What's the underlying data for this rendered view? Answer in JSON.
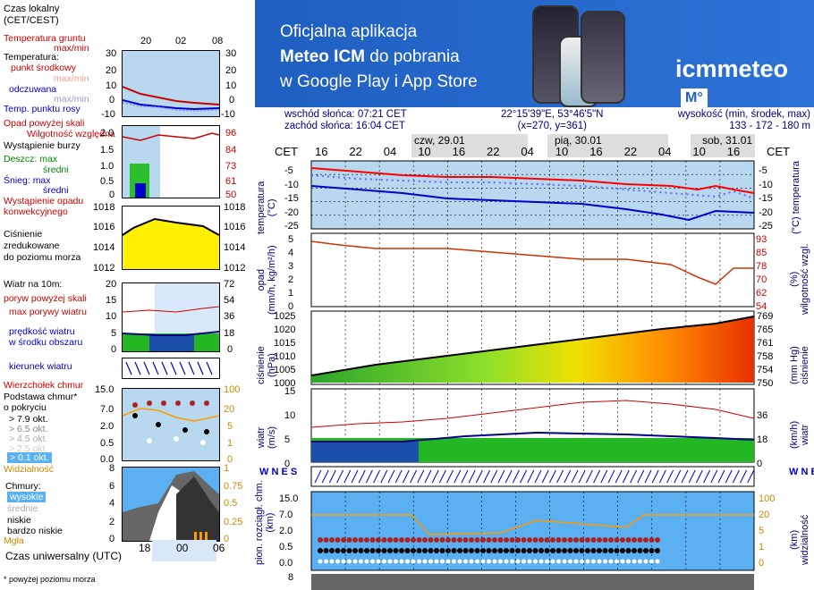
{
  "legend": {
    "time_zone": "Czas lokalny\n(CET/CEST)",
    "top_ticks": [
      "20",
      "02",
      "08"
    ],
    "soil_temp": "Temperatura gruntu",
    "soil_maxmin": "max/min",
    "temperature": "Temperatura:",
    "center_point": "punkt środkowy",
    "max_min_1": "max/min",
    "feels_like": "odczuwana",
    "max_min_2": "max/min",
    "dew_point": "Temp. punktu rosy",
    "temp_ticks": [
      "30",
      "20",
      "10",
      "0",
      "-10"
    ],
    "precip_over_scale": "Opad powyżej skali",
    "humidity": "Wilgotność względna",
    "storm": "Wystąpienie burzy",
    "rain_max": "Deszcz: max",
    "rain_avg": "średni",
    "snow_max": "Śnieg:   max",
    "snow_avg": "średni",
    "convective": "Wystąpienie opadu\nkonwekcyjnego",
    "precip_ticks": [
      "2.0",
      "1.5",
      "1.0",
      "0.5",
      "0"
    ],
    "hum_ticks": [
      "96",
      "84",
      "73",
      "61",
      "50"
    ],
    "pressure": "Ciśnienie\nzredukowane\ndo poziomu morza",
    "press_ticks": [
      "1018",
      "1016",
      "1014",
      "1012"
    ],
    "wind10": "Wiatr na 10m:",
    "gust_over": "poryw powyżej skali",
    "max_gust": "max porywy wiatru",
    "wind_speed": "prędkość wiatru\nw środku obszaru",
    "wind_ticks": [
      "20",
      "15",
      "10",
      "5",
      "0"
    ],
    "wind_kmh_ticks": [
      "72",
      "54",
      "36",
      "18",
      "0"
    ],
    "wind_dir": "kierunek wiatru",
    "cloud_top": "Wierzchołek chmur",
    "cloud_base": "Podstawa chmur*\no pokryciu",
    "okt": [
      "> 7.9 okt.",
      "> 6.5 okt.",
      "> 4.5 okt.",
      "> 2.5 okt.",
      "> 0.1 okt."
    ],
    "cloud_ticks": [
      "15.0",
      "7.0",
      "2.0",
      "0.5",
      "0.0"
    ],
    "vis_ticks": [
      "100",
      "20",
      "5",
      "1",
      "0"
    ],
    "visibility": "Widzialność",
    "clouds": "Chmury:",
    "high": "wysokie",
    "mid": "średnie",
    "low": "niskie",
    "very_low": "bardzo niskie",
    "fog": "Mgła",
    "cl_ticks": [
      "8",
      "6",
      "4",
      "2",
      "0"
    ],
    "cl_right_ticks": [
      "1",
      "0.75",
      "0.5",
      "0.25",
      "0"
    ],
    "utc": "Czas uniwersalny (UTC)",
    "utc_ticks": [
      "18",
      "00",
      "06"
    ],
    "footnote": "* powyżej poziomu morza"
  },
  "banner": {
    "line1": "Oficjalna aplikacja",
    "line2_bold": "Meteo ICM",
    "line2_rest": " do pobrania",
    "line3": "w Google Play i App Store",
    "logo": "icmmeteo",
    "logo_badge": "M°"
  },
  "info": {
    "sunrise": "wschód słońca: 07:21 CET",
    "sunset": "zachód słońca: 16:04 CET",
    "coords": "22°15'39\"E, 53°46'5\"N",
    "grid": "(x=270,  y=361)",
    "height_label": "wysokość (min, środek, max)",
    "height_values": "133 - 172 - 180 m"
  },
  "timeline": {
    "cet": "CET",
    "hours": [
      "16",
      "22",
      "04",
      "10",
      "16",
      "22",
      "04",
      "10",
      "16",
      "22",
      "04",
      "10",
      "16"
    ],
    "days": [
      "czw, 29.01",
      "pią, 30.01",
      "sob, 31.01"
    ]
  },
  "panels": {
    "temp_left": "temperatura\n(°C)",
    "temp_right": "(°C)  temperatura",
    "temp_ticks": [
      "-5",
      "-10",
      "-15",
      "-20",
      "-25"
    ],
    "precip_left": "opad\n(mm/h, kg/m²/h)",
    "precip_right": "(%)\nwilgotność wzgl.",
    "precip_ticks": [
      "5",
      "4",
      "3",
      "2",
      "1",
      "0"
    ],
    "hum_ticks": [
      "93",
      "85",
      "78",
      "70",
      "62",
      "54"
    ],
    "press_left": "ciśnienie\n(hPa)",
    "press_right": "(mm Hg)\nciśnienie",
    "press_ticks": [
      "1025",
      "1020",
      "1015",
      "1010",
      "1005",
      "1000"
    ],
    "press_mm_ticks": [
      "769",
      "765",
      "761",
      "758",
      "754",
      "750"
    ],
    "wind_left": "wiatr\n(m/s)",
    "wind_right": "(km/h)\nwiatr",
    "wind_ticks": [
      "15",
      "10",
      "5",
      "0"
    ],
    "wind_kmh": [
      "36",
      "18",
      "0"
    ],
    "cloud_left": "pion. rozciągł. chm.\n(km)",
    "cloud_right": "(km)\nwidzialność",
    "cloud_ticks": [
      "15.0",
      "7.0",
      "2.0",
      "0.5",
      "0.0"
    ],
    "vis_ticks": [
      "100",
      "20",
      "5",
      "1",
      "0"
    ],
    "bottom_tick": "8"
  }
}
